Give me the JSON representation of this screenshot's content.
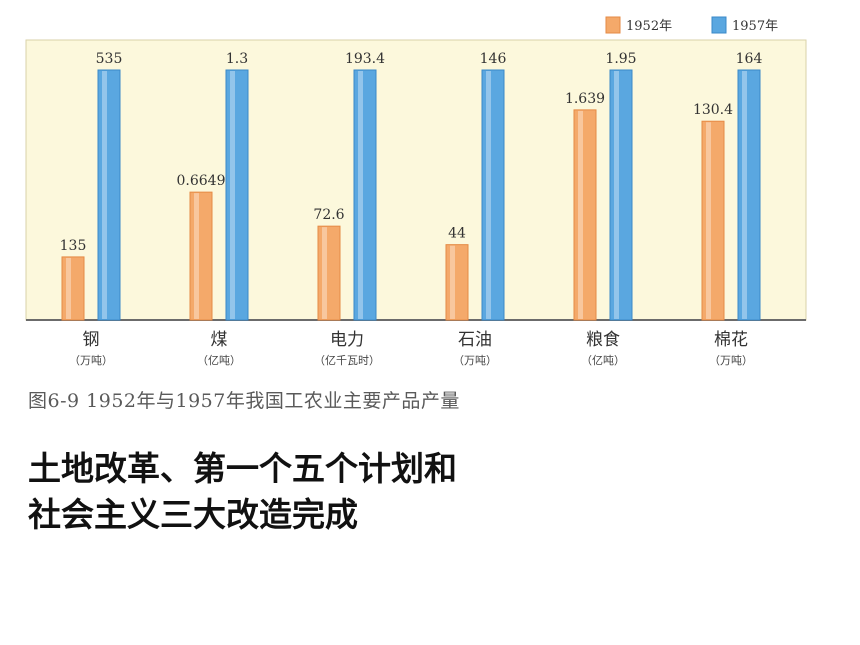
{
  "chart_data": {
    "type": "bar",
    "categories": [
      {
        "name": "钢",
        "unit": "（万吨）"
      },
      {
        "name": "煤",
        "unit": "（亿吨）"
      },
      {
        "name": "电力",
        "unit": "（亿千瓦时）"
      },
      {
        "name": "石油",
        "unit": "（万吨）"
      },
      {
        "name": "粮食",
        "unit": "（亿吨）"
      },
      {
        "name": "棉花",
        "unit": "（万吨）"
      }
    ],
    "series": [
      {
        "name": "1952年",
        "color": "#f4a96a",
        "values": [
          135,
          0.6649,
          72.6,
          44,
          1.639,
          130.4
        ],
        "labels": [
          "135",
          "0.6649",
          "72.6",
          "44",
          "1.639",
          "130.4"
        ]
      },
      {
        "name": "1957年",
        "color": "#5aa7e0",
        "values": [
          535,
          1.3,
          193.4,
          146,
          1.95,
          164
        ],
        "labels": [
          "535",
          "1.3",
          "193.4",
          "146",
          "1.95",
          "164"
        ]
      }
    ],
    "note": "Each category is scaled independently (different units)",
    "legend_position": "top-right",
    "grid": false,
    "background_color": "#fcf8dc"
  },
  "caption": "图6-9 1952年与1957年我国工农业主要产品产量",
  "headline": {
    "line1": "土地改革、第一个五个计划和",
    "line2": "社会主义三大改造完成"
  }
}
